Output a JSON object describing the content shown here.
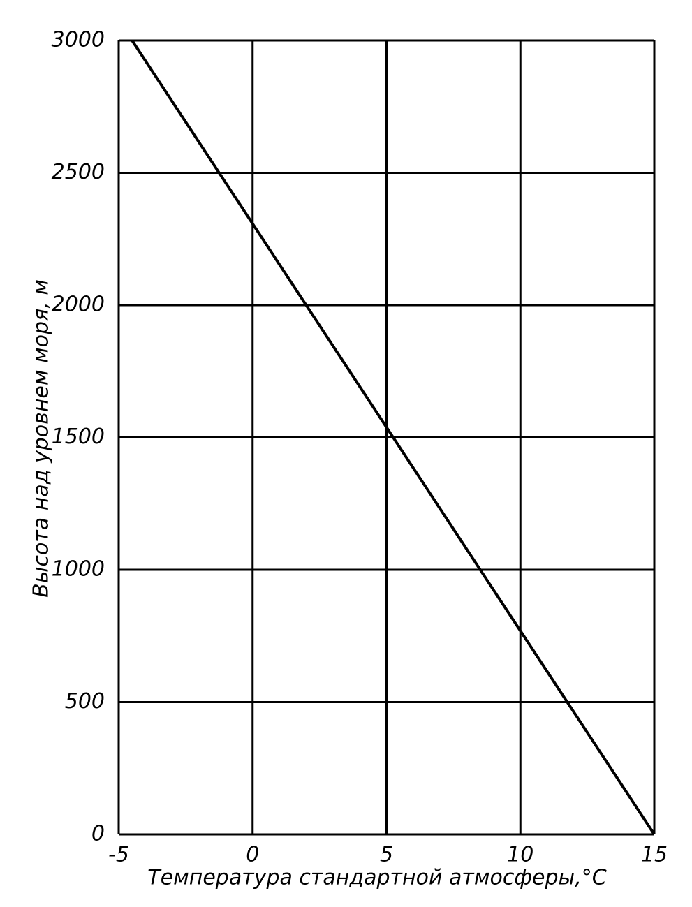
{
  "chart_data": {
    "type": "line",
    "x_label": "Температура стандартной атмосферы,°С",
    "y_label": "Высота над уровнем моря, м",
    "x": [
      -4.5,
      15
    ],
    "series": [
      {
        "color": "#000000",
        "values": [
          3000,
          0
        ]
      }
    ],
    "xlim": [
      -5,
      15
    ],
    "xticks": [
      -5,
      0,
      5,
      10,
      15
    ],
    "ylim": [
      0,
      3000
    ],
    "yticks": [
      0,
      500,
      1000,
      1500,
      2000,
      2500,
      3000
    ],
    "grid": true
  }
}
